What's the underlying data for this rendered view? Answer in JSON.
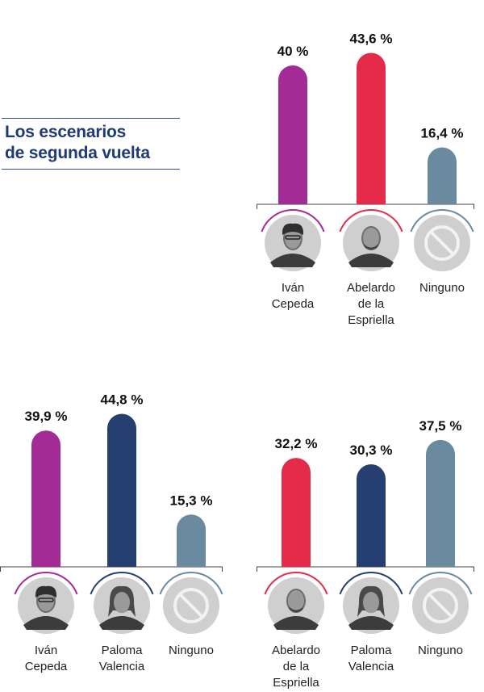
{
  "heading": {
    "line1": "Los escenarios",
    "line2": "de segunda vuelta"
  },
  "colors": {
    "cepeda": "#a32b95",
    "espriella": "#e42c4a",
    "valencia": "#243f70",
    "ninguno": "#6a8aa0"
  },
  "chart_data": [
    {
      "type": "bar",
      "categories": [
        "Iván Cepeda",
        "Abelardo de la Espriella",
        "Ninguno"
      ],
      "values": [
        40,
        43.6,
        16.4
      ],
      "value_labels": [
        "40 %",
        "43,6 %",
        "16,4 %"
      ],
      "name_lines": [
        [
          "Iván",
          "Cepeda"
        ],
        [
          "Abelardo",
          "de la",
          "Espriella"
        ],
        [
          "Ninguno"
        ]
      ],
      "icons": [
        "cepeda-photo-icon",
        "espriella-photo-icon",
        "none-icon"
      ],
      "color_keys": [
        "cepeda",
        "espriella",
        "ninguno"
      ]
    },
    {
      "type": "bar",
      "categories": [
        "Iván Cepeda",
        "Paloma Valencia",
        "Ninguno"
      ],
      "values": [
        39.9,
        44.8,
        15.3
      ],
      "value_labels": [
        "39,9 %",
        "44,8 %",
        "15,3 %"
      ],
      "name_lines": [
        [
          "Iván",
          "Cepeda"
        ],
        [
          "Paloma",
          "Valencia"
        ],
        [
          "Ninguno"
        ]
      ],
      "icons": [
        "cepeda-photo-icon",
        "valencia-photo-icon",
        "none-icon"
      ],
      "color_keys": [
        "cepeda",
        "valencia",
        "ninguno"
      ]
    },
    {
      "type": "bar",
      "categories": [
        "Abelardo de la Espriella",
        "Paloma Valencia",
        "Ninguno"
      ],
      "values": [
        32.2,
        30.3,
        37.5
      ],
      "value_labels": [
        "32,2 %",
        "30,3 %",
        "37,5 %"
      ],
      "name_lines": [
        [
          "Abelardo",
          "de la",
          "Espriella"
        ],
        [
          "Paloma",
          "Valencia"
        ],
        [
          "Ninguno"
        ]
      ],
      "icons": [
        "espriella-photo-icon",
        "valencia-photo-icon",
        "none-icon"
      ],
      "color_keys": [
        "espriella",
        "valencia",
        "ninguno"
      ]
    }
  ]
}
